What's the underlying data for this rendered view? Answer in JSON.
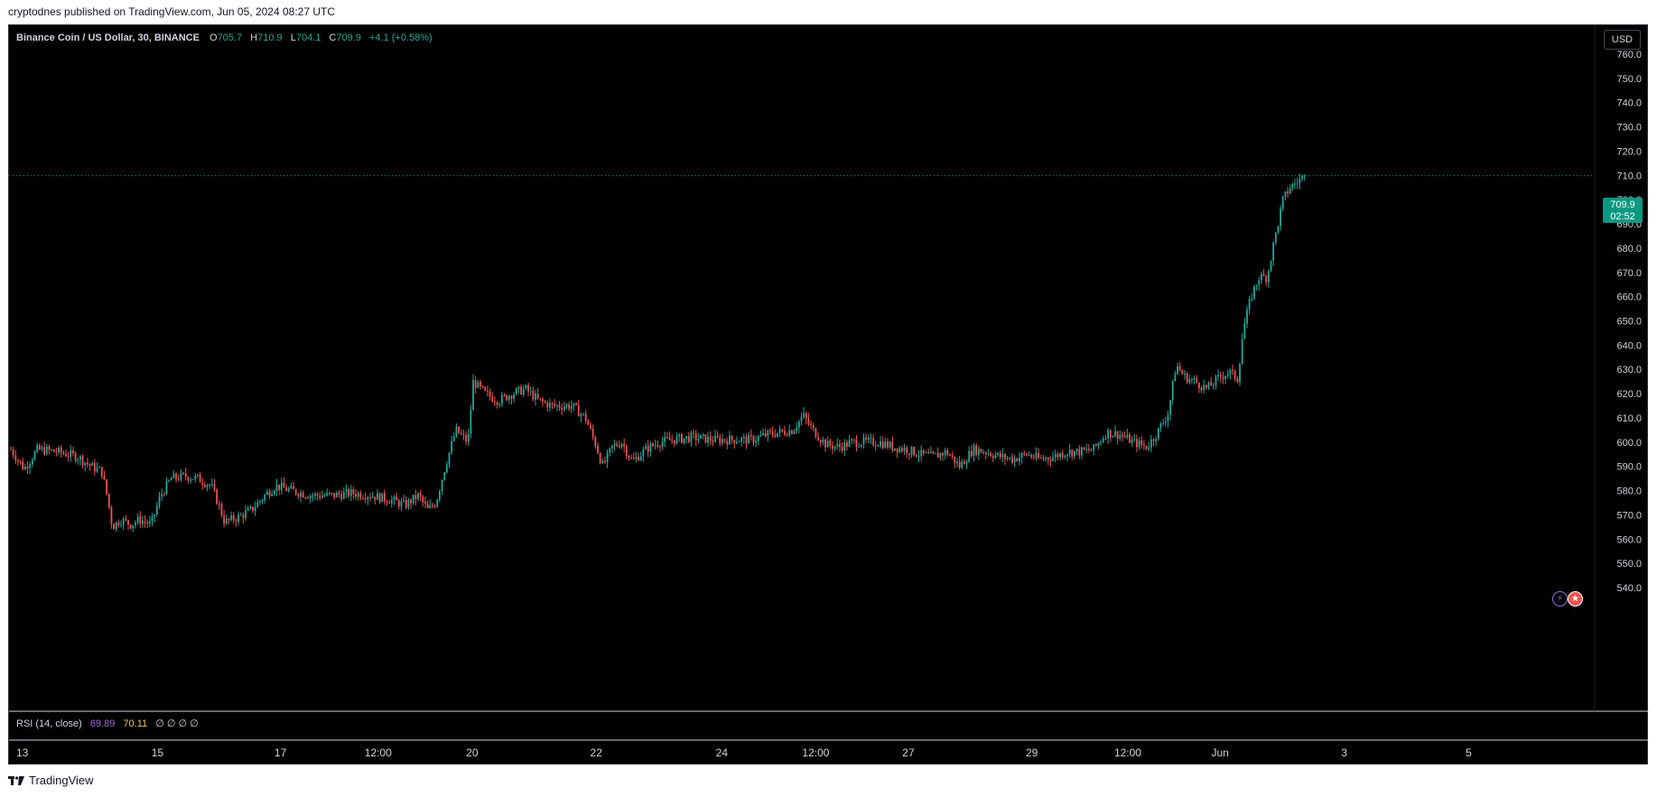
{
  "attribution": "cryptodnes published on TradingView.com, Jun 05, 2024 08:27 UTC",
  "footer": {
    "brand": "TradingView",
    "logo_icon": "tradingview-logo-icon"
  },
  "legend": {
    "symbol": "Binance Coin / US Dollar, 30, BINANCE",
    "o_label": "O",
    "o": "705.7",
    "h_label": "H",
    "h": "710.9",
    "l_label": "L",
    "l": "704.1",
    "c_label": "C",
    "c": "709.9",
    "change": "+4.1 (+0.58%)"
  },
  "currency_button": "USD",
  "price_tag": {
    "price": "709.9",
    "countdown": "02:52"
  },
  "rsi_legend": {
    "label": "RSI (14, close)",
    "value1": "69.89",
    "value2": "70.11",
    "na": "∅ ∅ ∅ ∅"
  },
  "colors": {
    "background": "#000000",
    "up": "#26a69a",
    "down": "#ef5350",
    "text": "#d1d4dc",
    "price_tag": "#089981"
  },
  "chart_data": {
    "type": "candlestick",
    "title": "Binance Coin / US Dollar, 30, BINANCE",
    "y_ticks": [
      "760.0",
      "750.0",
      "740.0",
      "730.0",
      "720.0",
      "710.0",
      "700.0",
      "690.0",
      "680.0",
      "670.0",
      "660.0",
      "650.0",
      "640.0",
      "630.0",
      "620.0",
      "610.0",
      "600.0",
      "590.0",
      "580.0",
      "570.0",
      "560.0",
      "550.0",
      "540.0"
    ],
    "y_tick_values": [
      760,
      750,
      740,
      730,
      720,
      710,
      700,
      690,
      680,
      670,
      660,
      650,
      640,
      630,
      620,
      610,
      600,
      590,
      580,
      570,
      560,
      550,
      540
    ],
    "x_ticks": [
      {
        "label": "13",
        "pos": 0
      },
      {
        "label": "15",
        "pos": 0.0915
      },
      {
        "label": "17",
        "pos": 0.1712
      },
      {
        "label": "12:00",
        "pos": 0.2345
      },
      {
        "label": "20",
        "pos": 0.2954
      },
      {
        "label": "22",
        "pos": 0.3758
      },
      {
        "label": "24",
        "pos": 0.4572
      },
      {
        "label": "12:00",
        "pos": 0.5181
      },
      {
        "label": "27",
        "pos": 0.5781
      },
      {
        "label": "29",
        "pos": 0.6581
      },
      {
        "label": "12:00",
        "pos": 0.7203
      },
      {
        "label": "Jun",
        "pos": 0.7801
      },
      {
        "label": "3",
        "pos": 0.8605
      },
      {
        "label": "5",
        "pos": 0.9412
      }
    ],
    "ylim": [
      535,
      765
    ],
    "current_price": 709.9,
    "close_path": [
      [
        0.0,
        597
      ],
      [
        0.01,
        589
      ],
      [
        0.02,
        597
      ],
      [
        0.035,
        596
      ],
      [
        0.05,
        594
      ],
      [
        0.06,
        590
      ],
      [
        0.068,
        588
      ],
      [
        0.072,
        578
      ],
      [
        0.076,
        565
      ],
      [
        0.082,
        568
      ],
      [
        0.09,
        566
      ],
      [
        0.096,
        568
      ],
      [
        0.105,
        566
      ],
      [
        0.112,
        578
      ],
      [
        0.12,
        585
      ],
      [
        0.13,
        586
      ],
      [
        0.14,
        585
      ],
      [
        0.15,
        582
      ],
      [
        0.155,
        575
      ],
      [
        0.16,
        567
      ],
      [
        0.17,
        569
      ],
      [
        0.18,
        572
      ],
      [
        0.19,
        578
      ],
      [
        0.198,
        582
      ],
      [
        0.21,
        580
      ],
      [
        0.225,
        578
      ],
      [
        0.24,
        578
      ],
      [
        0.255,
        579
      ],
      [
        0.27,
        578
      ],
      [
        0.285,
        576
      ],
      [
        0.295,
        574
      ],
      [
        0.305,
        578
      ],
      [
        0.312,
        572
      ],
      [
        0.318,
        575
      ],
      [
        0.325,
        590
      ],
      [
        0.333,
        605
      ],
      [
        0.342,
        600
      ],
      [
        0.346,
        625
      ],
      [
        0.355,
        620
      ],
      [
        0.365,
        617
      ],
      [
        0.375,
        620
      ],
      [
        0.385,
        622
      ],
      [
        0.395,
        617
      ],
      [
        0.405,
        615
      ],
      [
        0.42,
        615
      ],
      [
        0.43,
        610
      ],
      [
        0.437,
        600
      ],
      [
        0.443,
        590
      ],
      [
        0.45,
        598
      ],
      [
        0.457,
        600
      ],
      [
        0.465,
        592
      ],
      [
        0.475,
        597
      ],
      [
        0.485,
        600
      ],
      [
        0.495,
        601
      ],
      [
        0.51,
        602
      ],
      [
        0.525,
        601
      ],
      [
        0.54,
        601
      ],
      [
        0.555,
        601
      ],
      [
        0.565,
        603
      ],
      [
        0.575,
        604
      ],
      [
        0.585,
        605
      ],
      [
        0.593,
        611
      ],
      [
        0.6,
        605
      ],
      [
        0.61,
        599
      ],
      [
        0.62,
        598
      ],
      [
        0.63,
        600
      ],
      [
        0.64,
        600
      ],
      [
        0.65,
        600
      ],
      [
        0.66,
        598
      ],
      [
        0.67,
        597
      ],
      [
        0.68,
        595
      ],
      [
        0.69,
        594
      ],
      [
        0.7,
        596
      ],
      [
        0.71,
        590
      ],
      [
        0.72,
        597
      ],
      [
        0.73,
        596
      ],
      [
        0.74,
        594
      ],
      [
        0.75,
        593
      ],
      [
        0.76,
        595
      ],
      [
        0.77,
        593
      ],
      [
        0.78,
        594
      ],
      [
        0.79,
        596
      ],
      [
        0.8,
        596
      ],
      [
        0.81,
        597
      ],
      [
        0.82,
        604
      ],
      [
        0.83,
        603
      ],
      [
        0.84,
        600
      ],
      [
        0.85,
        598
      ],
      [
        0.858,
        604
      ],
      [
        0.866,
        612
      ],
      [
        0.872,
        632
      ],
      [
        0.878,
        627
      ],
      [
        0.886,
        625
      ],
      [
        0.895,
        622
      ],
      [
        0.905,
        627
      ],
      [
        0.912,
        629
      ],
      [
        0.918,
        626
      ],
      [
        0.922,
        646
      ],
      [
        0.928,
        660
      ],
      [
        0.934,
        668
      ],
      [
        0.94,
        668
      ],
      [
        0.945,
        682
      ],
      [
        0.952,
        700
      ],
      [
        0.957,
        705
      ],
      [
        0.962,
        707
      ],
      [
        0.968,
        709.9
      ]
    ]
  }
}
